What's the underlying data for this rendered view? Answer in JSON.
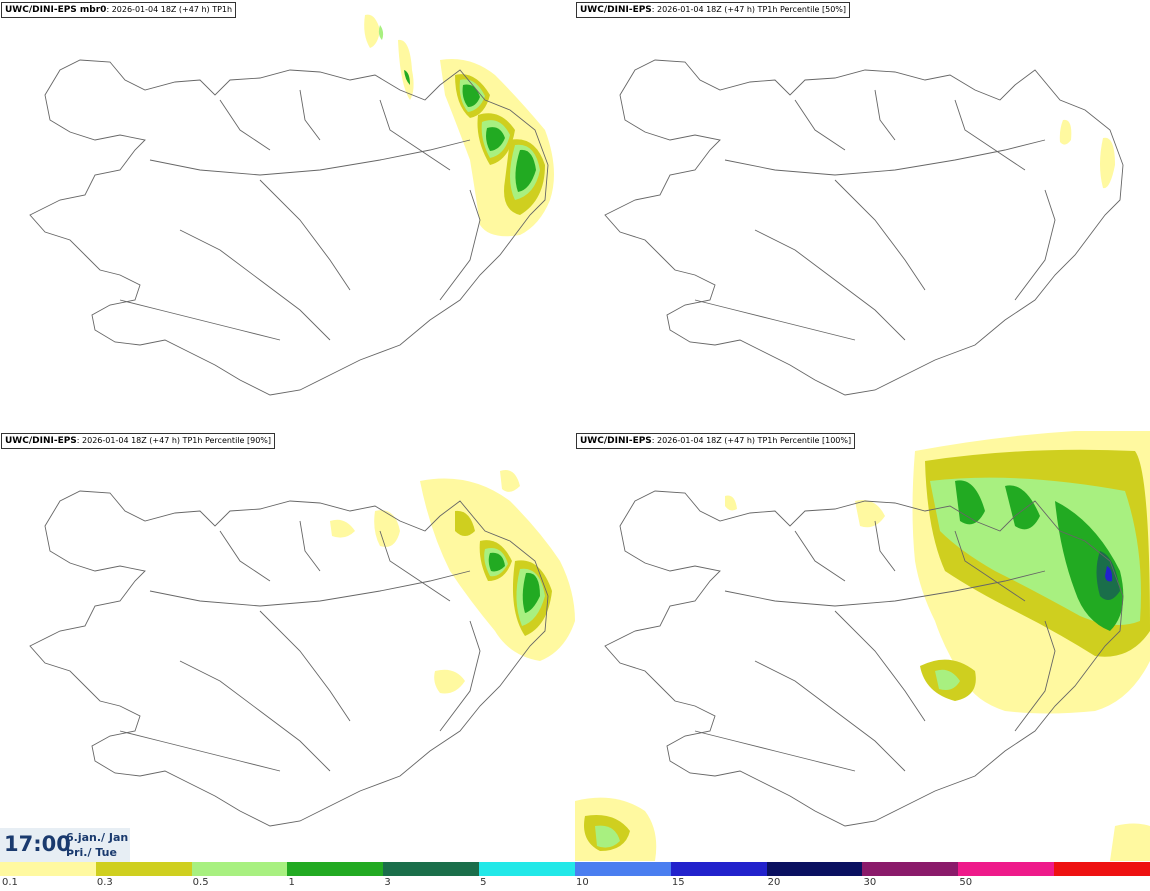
{
  "panels": [
    {
      "title_bold": "UWC/DINI-EPS mbr0",
      "title_rest": ": 2026-01-04 18Z (+47 h) TP1h"
    },
    {
      "title_bold": "UWC/DINI-EPS",
      "title_rest": ": 2026-01-04 18Z (+47 h) TP1h Percentile [50%]"
    },
    {
      "title_bold": "UWC/DINI-EPS",
      "title_rest": ": 2026-01-04 18Z (+47 h) TP1h Percentile [90%]"
    },
    {
      "title_bold": "UWC/DINI-EPS",
      "title_rest": ": 2026-01-04 18Z (+47 h) TP1h Percentile [100%]"
    }
  ],
  "valid_time": {
    "time": "17:00",
    "date_line1": "6.jan./ Jan",
    "date_line2": "Þri./ Tue"
  },
  "legend": {
    "colors": [
      "#fff9a0",
      "#cfcf1f",
      "#a8f080",
      "#22aa22",
      "#1a6e4a",
      "#22e8e8",
      "#4a7ef0",
      "#2222cc",
      "#0a1060",
      "#8a1a6a",
      "#ee1a8a",
      "#ee1111"
    ],
    "labels": [
      "0.1",
      "0.3",
      "0.5",
      "1",
      "3",
      "5",
      "10",
      "15",
      "20",
      "30",
      "50"
    ]
  }
}
